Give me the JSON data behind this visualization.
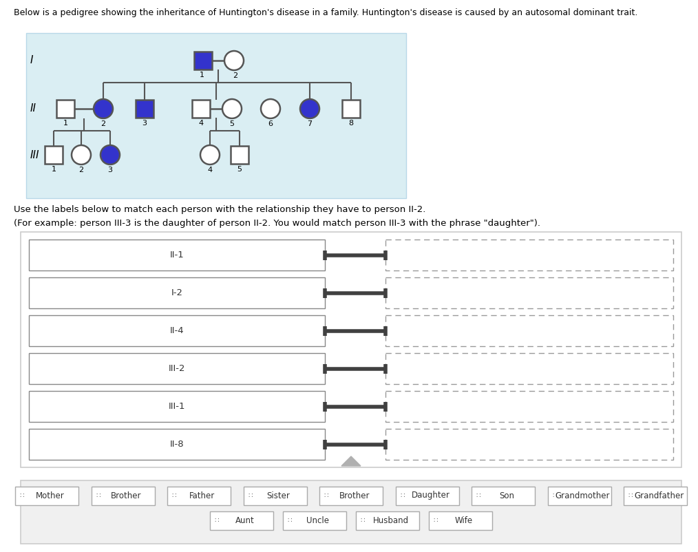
{
  "title_text": "Below is a pedigree showing the inheritance of Huntington's disease in a family. Huntington's disease is caused by an autosomal dominant trait.",
  "instruction1": "Use the labels below to match each person with the relationship they have to person II-2.",
  "instruction2": "(For example: person III-3 is the daughter of person II-2. You would match person III-3 with the phrase \"daughter\").",
  "pedigree_bg": "#daeef3",
  "affected_color": "#3333cc",
  "unaffected_fill": "#ffffff",
  "outline_color": "#555555",
  "drag_labels": [
    "II-1",
    "I-2",
    "II-4",
    "III-2",
    "III-1",
    "II-8"
  ],
  "answer_labels_row1": [
    "Mother",
    "Brother",
    "Father",
    "Sister",
    "Brother",
    "Daughter",
    "Son",
    "Grandmother",
    "Grandfather"
  ],
  "answer_labels_row2": [
    "Aunt",
    "Uncle",
    "Husband",
    "Wife"
  ]
}
